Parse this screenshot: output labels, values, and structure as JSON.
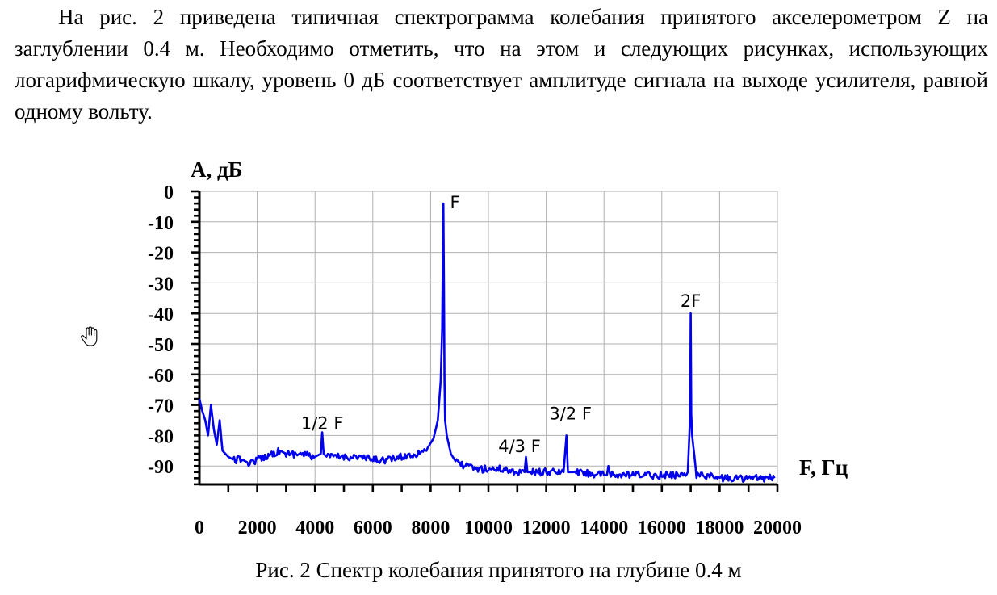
{
  "text": {
    "paragraph": "На рис. 2 приведена типичная спектрограмма колебания принятого акселерометром Z на заглублении 0.4 м. Необходимо отметить, что на этом и следующих рисунках, использующих логарифмическую шкалу, уровень 0 дБ соответствует амплитуде сигнала на выходе усилителя, равной одному вольту.",
    "caption": "Рис. 2 Спектр колебания принятого на глубине 0.4 м"
  },
  "cursor": {
    "icon": "hand-pointer-icon"
  },
  "chart_data": {
    "type": "line",
    "title": "",
    "xlabel": "F, Гц",
    "ylabel": "А, дБ",
    "xlim": [
      0,
      20000
    ],
    "ylim": [
      -97,
      0
    ],
    "x_ticks": [
      0,
      2000,
      4000,
      6000,
      8000,
      10000,
      12000,
      14000,
      16000,
      18000,
      20000
    ],
    "y_ticks": [
      0,
      -10,
      -20,
      -30,
      -40,
      -50,
      -60,
      -70,
      -80,
      -90
    ],
    "x_tick_labels": [
      "0",
      "2000",
      "4000",
      "6000",
      "8000",
      "10000",
      "12000",
      "14000",
      "16000",
      "18000",
      "20000"
    ],
    "y_tick_labels": [
      "0",
      "-10",
      "-20",
      "-30",
      "-40",
      "-50",
      "-60",
      "-70",
      "-80",
      "-90"
    ],
    "grid": true,
    "line_color": "#0000ee",
    "series": [
      {
        "x": [
          0,
          100,
          200,
          300,
          400,
          500,
          600,
          700,
          800,
          900,
          1000,
          1200,
          1500,
          1700,
          2000,
          2500,
          2800,
          3000,
          3500,
          4000,
          4200,
          4250,
          4300,
          4400,
          5000,
          5500,
          6000,
          6500,
          7000,
          7500,
          7900,
          8100,
          8250,
          8350,
          8400,
          8440,
          8460,
          8480,
          8500,
          8560,
          8700,
          8900,
          9200,
          9600,
          10000,
          10500,
          11000,
          11250,
          11300,
          11350,
          11500,
          12000,
          12600,
          12700,
          12750,
          12800,
          13000,
          14000,
          14100,
          14150,
          14200,
          15000,
          15500,
          16000,
          16500,
          16900,
          16960,
          16980,
          17000,
          17020,
          17050,
          17200,
          17500,
          18000,
          18500,
          19000,
          19500,
          19900
        ],
        "y": [
          -68,
          -72,
          -75,
          -80,
          -70,
          -78,
          -83,
          -75,
          -85,
          -86,
          -87,
          -88,
          -88,
          -89,
          -88,
          -86,
          -85,
          -86,
          -86,
          -87,
          -86,
          -79,
          -86,
          -87,
          -87,
          -87,
          -88,
          -88,
          -87,
          -86,
          -84,
          -81,
          -75,
          -62,
          -45,
          -4,
          -30,
          -62,
          -75,
          -80,
          -86,
          -89,
          -90,
          -91,
          -91,
          -91,
          -92,
          -92,
          -87,
          -92,
          -92,
          -92,
          -92,
          -80,
          -92,
          -92,
          -92,
          -93,
          -93,
          -90,
          -93,
          -93,
          -93,
          -93,
          -93,
          -92,
          -78,
          -73,
          -40,
          -73,
          -80,
          -93,
          -93,
          -94,
          -94,
          -94,
          -94,
          -94
        ]
      }
    ],
    "annotations": [
      {
        "text": "F",
        "x": 8450,
        "y": -4
      },
      {
        "text": "1/2 F",
        "x": 4250,
        "y": -79
      },
      {
        "text": "4/3 F",
        "x": 11300,
        "y": -87
      },
      {
        "text": "3/2 F",
        "x": 12700,
        "y": -80
      },
      {
        "text": "2F",
        "x": 17000,
        "y": -40
      }
    ]
  }
}
